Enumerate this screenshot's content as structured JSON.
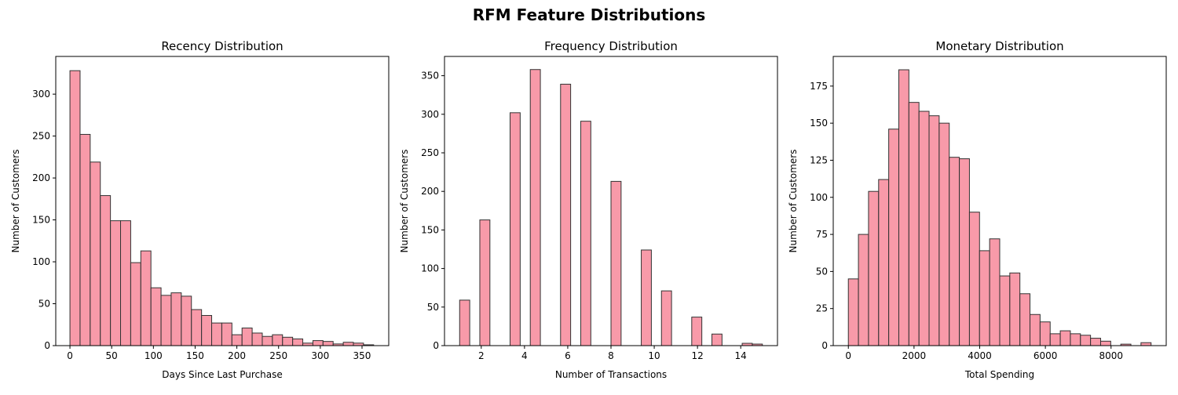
{
  "figure": {
    "suptitle": "RFM Feature Distributions",
    "bar_color": "#f7889a",
    "edge_color": "#333333"
  },
  "chart_data": [
    {
      "type": "bar",
      "title": "Recency Distribution",
      "xlabel": "Days Since Last Purchase",
      "ylabel": "Number of Customers",
      "xlim": [
        -17,
        382
      ],
      "ylim": [
        0,
        345
      ],
      "xticks": [
        0,
        50,
        100,
        150,
        200,
        250,
        300,
        350
      ],
      "yticks": [
        0,
        50,
        100,
        150,
        200,
        250,
        300
      ],
      "bin_start": 0,
      "bin_width": 12.13,
      "values": [
        328,
        252,
        219,
        179,
        149,
        149,
        99,
        113,
        69,
        60,
        63,
        59,
        43,
        36,
        27,
        27,
        13,
        21,
        15,
        11,
        13,
        10,
        8,
        3,
        6,
        5,
        2,
        4,
        3,
        1
      ]
    },
    {
      "type": "bar",
      "title": "Frequency Distribution",
      "xlabel": "Number of Transactions",
      "ylabel": "Number of Customers",
      "xlim": [
        0.3,
        15.7
      ],
      "ylim": [
        0,
        375
      ],
      "xticks": [
        2,
        4,
        6,
        8,
        10,
        12,
        14
      ],
      "yticks": [
        0,
        50,
        100,
        150,
        200,
        250,
        300,
        350
      ],
      "bin_start": 1,
      "bin_width": 0.4667,
      "values": [
        59,
        0,
        163,
        0,
        0,
        302,
        0,
        358,
        0,
        0,
        339,
        0,
        291,
        0,
        0,
        213,
        0,
        0,
        124,
        0,
        71,
        0,
        0,
        37,
        0,
        15,
        0,
        0,
        3,
        2
      ],
      "values_note_indices": [
        0,
        2,
        5,
        7,
        10,
        12,
        15,
        18,
        20,
        23,
        25,
        26,
        28,
        29
      ]
    },
    {
      "type": "bar",
      "title": "Monetary Distribution",
      "xlabel": "Total Spending",
      "ylabel": "Number of Customers",
      "xlim": [
        -460,
        9680
      ],
      "ylim": [
        0,
        195
      ],
      "xticks": [
        0,
        2000,
        4000,
        6000,
        8000
      ],
      "yticks": [
        0,
        25,
        50,
        75,
        100,
        125,
        150,
        175
      ],
      "bin_start": 0,
      "bin_width": 307.3,
      "values": [
        45,
        75,
        104,
        112,
        146,
        186,
        164,
        158,
        155,
        150,
        127,
        126,
        90,
        64,
        72,
        47,
        49,
        35,
        21,
        16,
        8,
        10,
        8,
        7,
        5,
        3,
        0,
        1,
        0,
        2
      ]
    }
  ]
}
